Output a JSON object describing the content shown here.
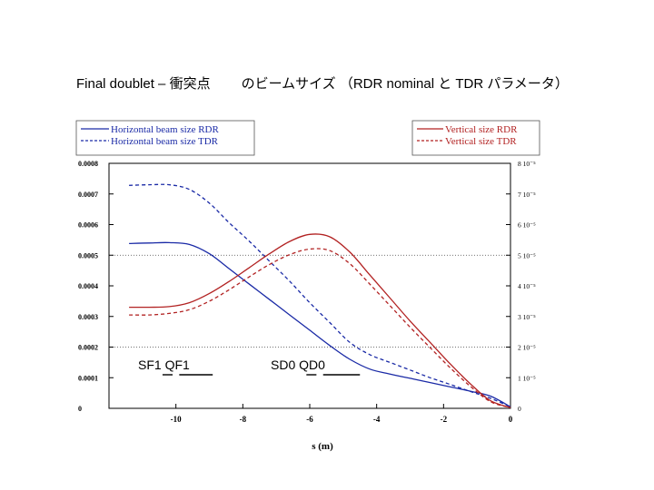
{
  "slide_title": {
    "left": "Final doublet – 衝突点",
    "right": "のビームサイズ （RDR nominal と TDR パラメータ）"
  },
  "colors": {
    "horizontal": "#1a2aa6",
    "vertical": "#b22222",
    "axis": "#000000"
  },
  "chart_data": {
    "type": "line",
    "title": "Final doublet – 衝突点のビームサイズ （RDR nominal と TDR パラメータ）",
    "xlabel": "s (m)",
    "ylabel_left": "",
    "ylabel_right": "",
    "xlim": [
      -12,
      0
    ],
    "ylim_left": [
      0,
      0.0008
    ],
    "ylim_right": [
      0,
      8e-05
    ],
    "grid": "dotted horizontal lines at 0.0002 and 0.0005",
    "x_ticks": [
      "-10",
      "-8",
      "-6",
      "-4",
      "-2",
      "0"
    ],
    "left_ticks": [
      "0",
      "0.0001",
      "0.0002",
      "0.0003",
      "0.0004",
      "0.0005",
      "0.0006",
      "0.0007",
      "0.0008"
    ],
    "right_ticks": [
      "0",
      "1 10⁻⁵",
      "2 10⁻⁵",
      "3 10⁻⁵",
      "4 10⁻⁵",
      "5 10⁻⁵",
      "6 10⁻⁵",
      "7 10⁻⁵",
      "8 10⁻⁵"
    ],
    "legend_left": [
      {
        "label": "Horizontal beam size  RDR",
        "style": "solid"
      },
      {
        "label": "Horizontal beam size  TDR",
        "style": "dashed"
      }
    ],
    "legend_right": [
      {
        "label": "Vertical size RDR",
        "style": "solid"
      },
      {
        "label": "Vertical size  TDR",
        "style": "dashed"
      }
    ],
    "magnets": [
      {
        "name": "SF1",
        "s_start": -10.4,
        "s_end": -10.1
      },
      {
        "name": "QF1",
        "s_start": -9.9,
        "s_end": -8.9
      },
      {
        "name": "SD0",
        "s_start": -6.1,
        "s_end": -5.8
      },
      {
        "name": "QD0",
        "s_start": -5.6,
        "s_end": -4.5
      }
    ],
    "series": [
      {
        "name": "Horizontal beam size  RDR",
        "axis": "left",
        "style": "solid",
        "x": [
          -11.4,
          -10.8,
          -10.2,
          -9.6,
          -9.0,
          -8.4,
          -7.8,
          -7.2,
          -6.6,
          -6.0,
          -5.4,
          -4.8,
          -4.2,
          -3.6,
          -3.0,
          -2.4,
          -1.8,
          -1.2,
          -0.6,
          0
        ],
        "y": [
          0.000538,
          0.00054,
          0.000541,
          0.000535,
          0.000505,
          0.000455,
          0.000405,
          0.000355,
          0.000305,
          0.000255,
          0.000205,
          0.00016,
          0.000128,
          0.000112,
          9.8e-05,
          8.4e-05,
          7e-05,
          5.6e-05,
          4e-05,
          5e-06
        ]
      },
      {
        "name": "Horizontal beam size  TDR",
        "axis": "left",
        "style": "dashed",
        "x": [
          -11.4,
          -10.8,
          -10.2,
          -9.6,
          -9.0,
          -8.4,
          -7.8,
          -7.2,
          -6.6,
          -6.0,
          -5.4,
          -4.8,
          -4.2,
          -3.6,
          -3.0,
          -2.4,
          -1.8,
          -1.2,
          -0.6,
          0
        ],
        "y": [
          0.000728,
          0.00073,
          0.00073,
          0.000715,
          0.00067,
          0.000605,
          0.000545,
          0.00048,
          0.000415,
          0.000345,
          0.00028,
          0.000215,
          0.000175,
          0.00015,
          0.000125,
          0.0001,
          7.8e-05,
          5.5e-05,
          3.3e-05,
          5e-06
        ]
      },
      {
        "name": "Vertical size RDR",
        "axis": "right",
        "style": "solid",
        "x": [
          -11.4,
          -10.8,
          -10.2,
          -9.6,
          -9.0,
          -8.4,
          -7.8,
          -7.2,
          -6.6,
          -6.0,
          -5.4,
          -4.8,
          -4.2,
          -3.6,
          -3.0,
          -2.4,
          -1.8,
          -1.2,
          -0.6,
          0
        ],
        "y": [
          3.3e-05,
          3.3e-05,
          3.32e-05,
          3.45e-05,
          3.75e-05,
          4.15e-05,
          4.6e-05,
          5.05e-05,
          5.45e-05,
          5.68e-05,
          5.6e-05,
          5.1e-05,
          4.35e-05,
          3.6e-05,
          2.85e-05,
          2.15e-05,
          1.45e-05,
          8e-06,
          2.5e-06,
          2e-07
        ]
      },
      {
        "name": "Vertical size  TDR",
        "axis": "right",
        "style": "dashed",
        "x": [
          -11.4,
          -10.8,
          -10.2,
          -9.6,
          -9.0,
          -8.4,
          -7.8,
          -7.2,
          -6.6,
          -6.0,
          -5.4,
          -4.8,
          -4.2,
          -3.6,
          -3.0,
          -2.4,
          -1.8,
          -1.2,
          -0.6,
          0
        ],
        "y": [
          3.05e-05,
          3.05e-05,
          3.1e-05,
          3.22e-05,
          3.5e-05,
          3.88e-05,
          4.3e-05,
          4.7e-05,
          5.02e-05,
          5.2e-05,
          5.15e-05,
          4.72e-05,
          4.05e-05,
          3.35e-05,
          2.65e-05,
          1.98e-05,
          1.32e-05,
          7.2e-06,
          2.2e-06,
          2e-07
        ]
      }
    ]
  }
}
